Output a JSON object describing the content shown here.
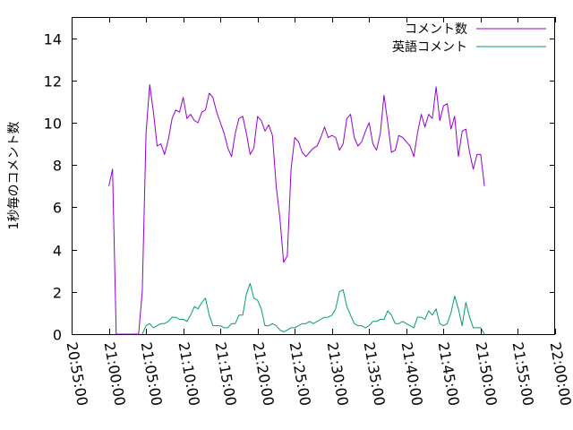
{
  "chart_data": {
    "type": "line",
    "ylabel": "1秒毎のコメント数",
    "xlabel": "",
    "title": "",
    "ylim": [
      0,
      15
    ],
    "xlim": [
      "20:55:00",
      "22:00:00"
    ],
    "yticks": [
      0,
      2,
      4,
      6,
      8,
      10,
      12,
      14
    ],
    "xticks": [
      "20:55:00",
      "21:00:00",
      "21:05:00",
      "21:10:00",
      "21:15:00",
      "21:20:00",
      "21:25:00",
      "21:30:00",
      "21:35:00",
      "21:40:00",
      "21:45:00",
      "21:50:00",
      "21:55:00",
      "22:00:00"
    ],
    "grid": false,
    "legend_position": "top-right",
    "series": [
      {
        "name": "コメント数",
        "color": "#9400d3",
        "points": [
          [
            "21:00:00",
            7.0
          ],
          [
            "21:00:30",
            7.8
          ],
          [
            "21:01:00",
            0.0
          ],
          [
            "21:04:00",
            0.0
          ],
          [
            "21:04:30",
            2.0
          ],
          [
            "21:05:00",
            9.5
          ],
          [
            "21:05:30",
            11.8
          ],
          [
            "21:06:00",
            10.5
          ],
          [
            "21:06:30",
            8.9
          ],
          [
            "21:07:00",
            9.0
          ],
          [
            "21:07:30",
            8.5
          ],
          [
            "21:08:00",
            9.2
          ],
          [
            "21:08:30",
            10.2
          ],
          [
            "21:09:00",
            10.6
          ],
          [
            "21:09:30",
            10.5
          ],
          [
            "21:10:00",
            11.2
          ],
          [
            "21:10:30",
            10.2
          ],
          [
            "21:11:00",
            10.4
          ],
          [
            "21:11:30",
            10.1
          ],
          [
            "21:12:00",
            10.0
          ],
          [
            "21:12:30",
            10.5
          ],
          [
            "21:13:00",
            10.6
          ],
          [
            "21:13:30",
            11.4
          ],
          [
            "21:14:00",
            11.2
          ],
          [
            "21:14:30",
            10.5
          ],
          [
            "21:15:00",
            10.0
          ],
          [
            "21:15:30",
            9.5
          ],
          [
            "21:16:00",
            8.8
          ],
          [
            "21:16:30",
            8.4
          ],
          [
            "21:17:00",
            9.5
          ],
          [
            "21:17:30",
            10.2
          ],
          [
            "21:18:00",
            10.3
          ],
          [
            "21:18:30",
            9.5
          ],
          [
            "21:19:00",
            8.5
          ],
          [
            "21:19:30",
            8.8
          ],
          [
            "21:20:00",
            10.3
          ],
          [
            "21:20:30",
            10.1
          ],
          [
            "21:21:00",
            9.6
          ],
          [
            "21:21:30",
            9.9
          ],
          [
            "21:22:00",
            9.4
          ],
          [
            "21:22:30",
            7.0
          ],
          [
            "21:23:00",
            5.5
          ],
          [
            "21:23:30",
            3.4
          ],
          [
            "21:24:00",
            3.7
          ],
          [
            "21:24:30",
            7.8
          ],
          [
            "21:25:00",
            9.3
          ],
          [
            "21:25:30",
            9.1
          ],
          [
            "21:26:00",
            8.6
          ],
          [
            "21:26:30",
            8.4
          ],
          [
            "21:27:00",
            8.6
          ],
          [
            "21:27:30",
            8.8
          ],
          [
            "21:28:00",
            8.9
          ],
          [
            "21:28:30",
            9.3
          ],
          [
            "21:29:00",
            9.8
          ],
          [
            "21:29:30",
            9.3
          ],
          [
            "21:30:00",
            9.4
          ],
          [
            "21:30:30",
            9.3
          ],
          [
            "21:31:00",
            8.7
          ],
          [
            "21:31:30",
            9.0
          ],
          [
            "21:32:00",
            10.2
          ],
          [
            "21:32:30",
            10.4
          ],
          [
            "21:33:00",
            9.3
          ],
          [
            "21:33:30",
            8.9
          ],
          [
            "21:34:00",
            9.1
          ],
          [
            "21:34:30",
            9.6
          ],
          [
            "21:35:00",
            10.0
          ],
          [
            "21:35:30",
            9.0
          ],
          [
            "21:36:00",
            8.7
          ],
          [
            "21:36:30",
            9.5
          ],
          [
            "21:37:00",
            11.3
          ],
          [
            "21:37:30",
            10.0
          ],
          [
            "21:38:00",
            8.6
          ],
          [
            "21:38:30",
            8.7
          ],
          [
            "21:39:00",
            9.4
          ],
          [
            "21:39:30",
            9.3
          ],
          [
            "21:40:00",
            9.1
          ],
          [
            "21:40:30",
            8.9
          ],
          [
            "21:41:00",
            8.4
          ],
          [
            "21:41:30",
            9.5
          ],
          [
            "21:42:00",
            10.4
          ],
          [
            "21:42:30",
            9.8
          ],
          [
            "21:43:00",
            10.4
          ],
          [
            "21:43:30",
            10.2
          ],
          [
            "21:44:00",
            11.7
          ],
          [
            "21:44:30",
            10.1
          ],
          [
            "21:45:00",
            10.8
          ],
          [
            "21:45:30",
            10.9
          ],
          [
            "21:46:00",
            9.7
          ],
          [
            "21:46:30",
            10.3
          ],
          [
            "21:47:00",
            8.4
          ],
          [
            "21:47:30",
            9.6
          ],
          [
            "21:48:00",
            9.7
          ],
          [
            "21:48:30",
            8.6
          ],
          [
            "21:49:00",
            7.8
          ],
          [
            "21:49:30",
            8.5
          ],
          [
            "21:50:00",
            8.5
          ],
          [
            "21:50:30",
            7.0
          ]
        ]
      },
      {
        "name": "英語コメント",
        "color": "#009e73",
        "points": [
          [
            "21:04:30",
            0.0
          ],
          [
            "21:05:00",
            0.4
          ],
          [
            "21:05:30",
            0.5
          ],
          [
            "21:06:00",
            0.3
          ],
          [
            "21:06:30",
            0.4
          ],
          [
            "21:07:00",
            0.5
          ],
          [
            "21:07:30",
            0.5
          ],
          [
            "21:08:00",
            0.6
          ],
          [
            "21:08:30",
            0.8
          ],
          [
            "21:09:00",
            0.8
          ],
          [
            "21:09:30",
            0.7
          ],
          [
            "21:10:00",
            0.7
          ],
          [
            "21:10:30",
            0.6
          ],
          [
            "21:11:00",
            0.9
          ],
          [
            "21:11:30",
            1.3
          ],
          [
            "21:12:00",
            1.2
          ],
          [
            "21:12:30",
            1.5
          ],
          [
            "21:13:00",
            1.7
          ],
          [
            "21:13:30",
            0.9
          ],
          [
            "21:14:00",
            0.4
          ],
          [
            "21:14:30",
            0.4
          ],
          [
            "21:15:00",
            0.4
          ],
          [
            "21:15:30",
            0.3
          ],
          [
            "21:16:00",
            0.3
          ],
          [
            "21:16:30",
            0.5
          ],
          [
            "21:17:00",
            0.5
          ],
          [
            "21:17:30",
            0.9
          ],
          [
            "21:18:00",
            0.9
          ],
          [
            "21:18:30",
            1.9
          ],
          [
            "21:19:00",
            2.4
          ],
          [
            "21:19:30",
            1.7
          ],
          [
            "21:20:00",
            1.6
          ],
          [
            "21:20:30",
            1.2
          ],
          [
            "21:21:00",
            0.4
          ],
          [
            "21:21:30",
            0.4
          ],
          [
            "21:22:00",
            0.5
          ],
          [
            "21:22:30",
            0.4
          ],
          [
            "21:23:00",
            0.2
          ],
          [
            "21:23:30",
            0.1
          ],
          [
            "21:24:00",
            0.2
          ],
          [
            "21:24:30",
            0.3
          ],
          [
            "21:25:00",
            0.3
          ],
          [
            "21:25:30",
            0.4
          ],
          [
            "21:26:00",
            0.5
          ],
          [
            "21:26:30",
            0.5
          ],
          [
            "21:27:00",
            0.6
          ],
          [
            "21:27:30",
            0.5
          ],
          [
            "21:28:00",
            0.6
          ],
          [
            "21:28:30",
            0.7
          ],
          [
            "21:29:00",
            0.8
          ],
          [
            "21:29:30",
            0.8
          ],
          [
            "21:30:00",
            0.9
          ],
          [
            "21:30:30",
            1.2
          ],
          [
            "21:31:00",
            2.0
          ],
          [
            "21:31:30",
            2.1
          ],
          [
            "21:32:00",
            1.3
          ],
          [
            "21:32:30",
            0.9
          ],
          [
            "21:33:00",
            0.5
          ],
          [
            "21:33:30",
            0.4
          ],
          [
            "21:34:00",
            0.4
          ],
          [
            "21:34:30",
            0.3
          ],
          [
            "21:35:00",
            0.4
          ],
          [
            "21:35:30",
            0.6
          ],
          [
            "21:36:00",
            0.6
          ],
          [
            "21:36:30",
            0.7
          ],
          [
            "21:37:00",
            0.7
          ],
          [
            "21:37:30",
            1.1
          ],
          [
            "21:38:00",
            0.9
          ],
          [
            "21:38:30",
            0.5
          ],
          [
            "21:39:00",
            0.5
          ],
          [
            "21:39:30",
            0.6
          ],
          [
            "21:40:00",
            0.5
          ],
          [
            "21:40:30",
            0.4
          ],
          [
            "21:41:00",
            0.3
          ],
          [
            "21:41:30",
            0.8
          ],
          [
            "21:42:00",
            0.8
          ],
          [
            "21:42:30",
            0.7
          ],
          [
            "21:43:00",
            1.1
          ],
          [
            "21:43:30",
            0.9
          ],
          [
            "21:44:00",
            1.2
          ],
          [
            "21:44:30",
            0.5
          ],
          [
            "21:45:00",
            0.4
          ],
          [
            "21:45:30",
            0.5
          ],
          [
            "21:46:00",
            1.0
          ],
          [
            "21:46:30",
            1.8
          ],
          [
            "21:47:00",
            1.2
          ],
          [
            "21:47:30",
            0.4
          ],
          [
            "21:48:00",
            1.5
          ],
          [
            "21:48:30",
            0.8
          ],
          [
            "21:49:00",
            0.3
          ],
          [
            "21:49:30",
            0.3
          ],
          [
            "21:50:00",
            0.3
          ],
          [
            "21:50:30",
            0.0
          ]
        ]
      }
    ]
  }
}
